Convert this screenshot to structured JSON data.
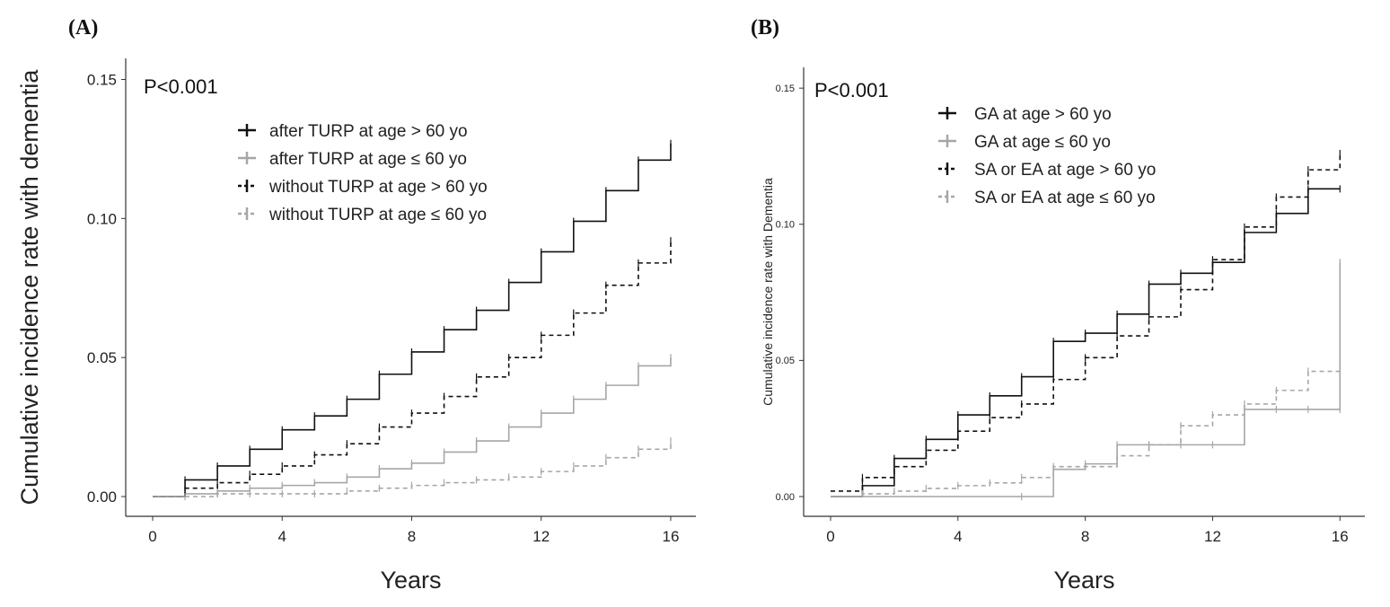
{
  "figure": {
    "panel_a_label": "(A)",
    "panel_b_label": "(B)"
  },
  "chart_data": [
    {
      "type": "line",
      "panel": "(A)",
      "annotation": "P<0.001",
      "xlabel": "Years",
      "ylabel": "Cumulative incidence rate with dementia",
      "xlim": [
        0,
        16.5
      ],
      "ylim": [
        0,
        0.155
      ],
      "xticks": [
        0,
        4,
        8,
        12,
        16
      ],
      "yticks": [
        0.0,
        0.05,
        0.1,
        0.15
      ],
      "ytick_labels": [
        "0.00",
        "0.05",
        "0.10",
        "0.15"
      ],
      "legend_position": "top-center",
      "series": [
        {
          "name": "after TURP at age > 60 yo",
          "color": "#111111",
          "dash": "solid",
          "x": [
            0,
            1,
            2,
            3,
            4,
            5,
            6,
            7,
            8,
            9,
            10,
            11,
            12,
            13,
            14,
            15,
            16
          ],
          "y": [
            0.0,
            0.006,
            0.011,
            0.017,
            0.024,
            0.029,
            0.035,
            0.044,
            0.052,
            0.06,
            0.067,
            0.077,
            0.088,
            0.099,
            0.11,
            0.121,
            0.127
          ]
        },
        {
          "name": "after TURP at age ≤ 60 yo",
          "color": "#a6a6a6",
          "dash": "solid",
          "x": [
            0,
            1,
            2,
            3,
            4,
            5,
            6,
            7,
            8,
            9,
            10,
            11,
            12,
            13,
            14,
            15,
            16
          ],
          "y": [
            0.0,
            0.001,
            0.002,
            0.003,
            0.004,
            0.005,
            0.007,
            0.01,
            0.012,
            0.016,
            0.02,
            0.025,
            0.03,
            0.035,
            0.04,
            0.047,
            0.05
          ]
        },
        {
          "name": "without TURP at age > 60 yo",
          "color": "#111111",
          "dash": "dashed",
          "x": [
            0,
            1,
            2,
            3,
            4,
            5,
            6,
            7,
            8,
            9,
            10,
            11,
            12,
            13,
            14,
            15,
            16
          ],
          "y": [
            0.0,
            0.003,
            0.005,
            0.008,
            0.011,
            0.015,
            0.019,
            0.025,
            0.03,
            0.036,
            0.043,
            0.05,
            0.058,
            0.066,
            0.076,
            0.084,
            0.092
          ]
        },
        {
          "name": "without TURP at age ≤ 60 yo",
          "color": "#a6a6a6",
          "dash": "dashed",
          "x": [
            0,
            1,
            2,
            3,
            4,
            5,
            6,
            7,
            8,
            9,
            10,
            11,
            12,
            13,
            14,
            15,
            16
          ],
          "y": [
            0.0,
            0.0,
            0.001,
            0.001,
            0.001,
            0.001,
            0.002,
            0.003,
            0.004,
            0.005,
            0.006,
            0.007,
            0.009,
            0.011,
            0.014,
            0.017,
            0.02
          ]
        }
      ]
    },
    {
      "type": "line",
      "panel": "(B)",
      "annotation": "P<0.001",
      "xlabel": "Years",
      "ylabel": "Cumulative incidence rate with Dementia",
      "xlim": [
        0,
        16.5
      ],
      "ylim": [
        0,
        0.155
      ],
      "xticks": [
        0,
        4,
        8,
        12,
        16
      ],
      "yticks": [
        0.0,
        0.05,
        0.1,
        0.15
      ],
      "ytick_labels": [
        "0.00",
        "0.05",
        "0.10",
        "0.15"
      ],
      "legend_position": "top-center",
      "series": [
        {
          "name": "GA at age > 60 yo",
          "color": "#111111",
          "dash": "solid",
          "x": [
            0,
            1,
            2,
            3,
            4,
            5,
            6,
            7,
            8,
            9,
            10,
            11,
            12,
            13,
            14,
            15,
            16
          ],
          "y": [
            0.0,
            0.004,
            0.014,
            0.021,
            0.03,
            0.037,
            0.044,
            0.057,
            0.06,
            0.067,
            0.078,
            0.082,
            0.086,
            0.097,
            0.104,
            0.113,
            0.113
          ]
        },
        {
          "name": "GA at age ≤ 60 yo",
          "color": "#a6a6a6",
          "dash": "solid",
          "x": [
            0,
            6,
            7,
            8,
            9,
            10,
            11,
            12,
            13,
            14,
            15,
            16,
            16
          ],
          "y": [
            0.0,
            0.0,
            0.01,
            0.012,
            0.019,
            0.019,
            0.019,
            0.019,
            0.032,
            0.032,
            0.032,
            0.032,
            0.086
          ]
        },
        {
          "name": "SA or EA at age > 60 yo",
          "color": "#111111",
          "dash": "dashed",
          "x": [
            0,
            1,
            2,
            3,
            4,
            5,
            6,
            7,
            8,
            9,
            10,
            11,
            12,
            13,
            14,
            15,
            16
          ],
          "y": [
            0.002,
            0.007,
            0.011,
            0.017,
            0.024,
            0.029,
            0.034,
            0.043,
            0.051,
            0.059,
            0.066,
            0.076,
            0.087,
            0.099,
            0.11,
            0.12,
            0.126
          ]
        },
        {
          "name": "SA or EA at age ≤ 60 yo",
          "color": "#a6a6a6",
          "dash": "dashed",
          "x": [
            0,
            1,
            2,
            3,
            4,
            5,
            6,
            7,
            8,
            9,
            10,
            11,
            12,
            13,
            14,
            15,
            16
          ],
          "y": [
            0.0,
            0.001,
            0.002,
            0.003,
            0.004,
            0.005,
            0.007,
            0.011,
            0.011,
            0.015,
            0.019,
            0.026,
            0.03,
            0.034,
            0.039,
            0.046,
            0.048
          ]
        }
      ]
    }
  ]
}
